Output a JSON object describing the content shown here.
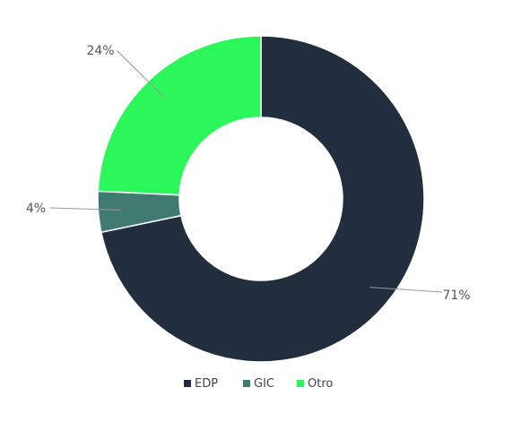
{
  "chart_data": {
    "type": "pie",
    "variant": "donut",
    "slices": [
      {
        "name": "EDP",
        "value": 71,
        "label": "71%",
        "color": "#222e3e"
      },
      {
        "name": "GIC",
        "value": 4,
        "label": "4%",
        "color": "#407a70"
      },
      {
        "name": "Otro",
        "value": 24,
        "label": "24%",
        "color": "#2cf75a"
      }
    ],
    "legend_position": "bottom"
  }
}
